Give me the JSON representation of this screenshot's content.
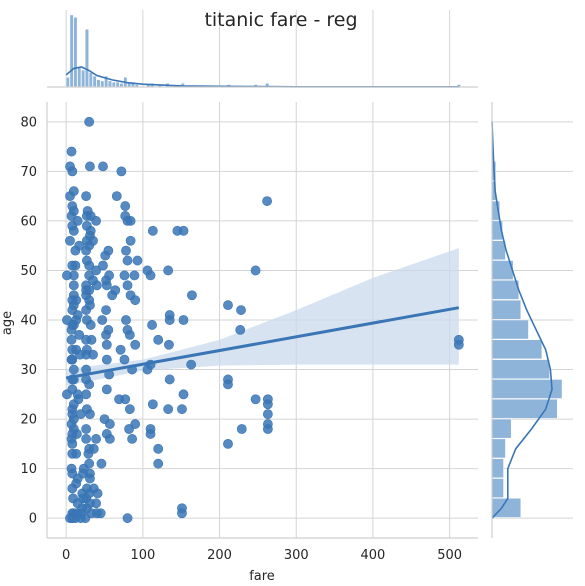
{
  "chart_data": {
    "type": "scatter",
    "title": "titanic fare - reg",
    "xlabel": "fare",
    "ylabel": "age",
    "xlim": [
      -25,
      537
    ],
    "ylim": [
      -4,
      84
    ],
    "xticks": [
      0,
      100,
      200,
      300,
      400,
      500
    ],
    "yticks": [
      0,
      10,
      20,
      30,
      40,
      50,
      60,
      70,
      80
    ],
    "grid": true,
    "legend": "none",
    "colors": {
      "points": "#3a76b5",
      "line": "#3a76b5",
      "band": "#c9d9ec",
      "hist": "#8fb4da"
    },
    "regression": {
      "slope": 0.0277,
      "intercept": 28.3,
      "ci_upper": [
        [
          0,
          30.1
        ],
        [
          100,
          32.0
        ],
        [
          200,
          36.0
        ],
        [
          300,
          42.0
        ],
        [
          400,
          48.5
        ],
        [
          512,
          54.5
        ]
      ],
      "ci_lower": [
        [
          0,
          26.7
        ],
        [
          100,
          29.8
        ],
        [
          200,
          30.8
        ],
        [
          300,
          31.0
        ],
        [
          400,
          31.0
        ],
        [
          512,
          31.0
        ]
      ]
    },
    "points": [
      [
        30,
        80
      ],
      [
        7,
        74
      ],
      [
        5,
        71
      ],
      [
        8,
        70
      ],
      [
        31,
        71
      ],
      [
        48,
        71
      ],
      [
        72,
        70
      ],
      [
        10,
        66
      ],
      [
        5,
        65
      ],
      [
        26,
        65
      ],
      [
        66,
        65
      ],
      [
        262,
        64
      ],
      [
        8,
        63
      ],
      [
        28,
        62
      ],
      [
        77,
        63
      ],
      [
        10,
        62
      ],
      [
        7,
        61
      ],
      [
        27,
        61
      ],
      [
        32,
        61
      ],
      [
        77,
        61
      ],
      [
        15,
        60
      ],
      [
        80,
        60
      ],
      [
        8,
        59
      ],
      [
        27,
        59
      ],
      [
        39,
        60
      ],
      [
        84,
        60
      ],
      [
        32,
        58
      ],
      [
        113,
        58
      ],
      [
        145,
        58
      ],
      [
        153,
        58
      ],
      [
        10,
        58
      ],
      [
        31,
        57
      ],
      [
        27,
        56
      ],
      [
        35,
        56
      ],
      [
        5,
        56
      ],
      [
        84,
        56
      ],
      [
        17,
        55
      ],
      [
        30,
        55
      ],
      [
        12,
        54
      ],
      [
        26,
        54
      ],
      [
        55,
        54
      ],
      [
        78,
        54
      ],
      [
        51,
        53
      ],
      [
        80,
        52
      ],
      [
        93,
        52
      ],
      [
        27,
        52
      ],
      [
        30,
        51
      ],
      [
        12,
        51
      ],
      [
        48,
        51
      ],
      [
        8,
        51
      ],
      [
        39,
        50
      ],
      [
        106,
        50
      ],
      [
        133,
        50
      ],
      [
        247,
        50
      ],
      [
        10,
        49
      ],
      [
        30,
        49
      ],
      [
        56,
        49
      ],
      [
        76,
        49
      ],
      [
        89,
        49
      ],
      [
        110,
        49
      ],
      [
        1,
        49
      ],
      [
        35,
        48
      ],
      [
        52,
        48
      ],
      [
        26,
        47
      ],
      [
        53,
        47
      ],
      [
        40,
        47
      ],
      [
        10,
        47
      ],
      [
        80,
        47
      ],
      [
        64,
        46
      ],
      [
        26,
        46
      ],
      [
        30,
        46
      ],
      [
        10,
        45
      ],
      [
        26,
        45
      ],
      [
        60,
        45
      ],
      [
        84,
        45
      ],
      [
        164,
        45
      ],
      [
        13,
        44
      ],
      [
        30,
        44
      ],
      [
        8,
        44
      ],
      [
        90,
        44
      ],
      [
        211,
        43
      ],
      [
        31,
        43
      ],
      [
        10,
        43
      ],
      [
        228,
        42
      ],
      [
        8,
        42
      ],
      [
        26,
        42
      ],
      [
        52,
        42
      ],
      [
        15,
        41
      ],
      [
        135,
        41
      ],
      [
        153,
        40
      ],
      [
        1,
        40
      ],
      [
        27,
        40
      ],
      [
        47,
        40
      ],
      [
        135,
        40
      ],
      [
        13,
        40
      ],
      [
        78,
        40
      ],
      [
        112,
        39
      ],
      [
        10,
        39
      ],
      [
        32,
        39
      ],
      [
        8,
        39
      ],
      [
        80,
        38
      ],
      [
        227,
        38
      ],
      [
        7,
        38
      ],
      [
        55,
        38
      ],
      [
        17,
        37
      ],
      [
        83,
        37
      ],
      [
        52,
        37
      ],
      [
        26,
        36
      ],
      [
        120,
        36
      ],
      [
        512,
        36
      ],
      [
        512,
        35
      ],
      [
        7,
        36
      ],
      [
        33,
        36
      ],
      [
        90,
        35
      ],
      [
        53,
        35
      ],
      [
        134,
        35
      ],
      [
        13,
        34
      ],
      [
        27,
        34
      ],
      [
        8,
        34
      ],
      [
        71,
        34
      ],
      [
        35,
        33
      ],
      [
        26,
        33
      ],
      [
        18,
        33
      ],
      [
        7,
        32
      ],
      [
        53,
        32
      ],
      [
        8,
        32
      ],
      [
        76,
        32
      ],
      [
        163,
        31
      ],
      [
        110,
        31
      ],
      [
        10,
        30
      ],
      [
        26,
        30
      ],
      [
        86,
        30
      ],
      [
        106,
        30
      ],
      [
        56,
        29
      ],
      [
        8,
        28
      ],
      [
        211,
        28
      ],
      [
        26,
        28
      ],
      [
        10,
        28
      ],
      [
        135,
        28
      ],
      [
        211,
        27
      ],
      [
        30,
        27
      ],
      [
        53,
        26
      ],
      [
        8,
        26
      ],
      [
        15,
        25
      ],
      [
        1,
        25
      ],
      [
        153,
        25
      ],
      [
        26,
        25
      ],
      [
        69,
        24
      ],
      [
        77,
        24
      ],
      [
        263,
        24
      ],
      [
        247,
        24
      ],
      [
        16,
        24
      ],
      [
        10,
        23
      ],
      [
        263,
        23
      ],
      [
        113,
        23
      ],
      [
        8,
        22
      ],
      [
        133,
        22
      ],
      [
        151,
        22
      ],
      [
        83,
        22
      ],
      [
        27,
        22
      ],
      [
        19,
        21
      ],
      [
        263,
        21
      ],
      [
        31,
        21
      ],
      [
        8,
        21
      ],
      [
        10,
        20
      ],
      [
        50,
        20
      ],
      [
        7,
        19
      ],
      [
        263,
        19
      ],
      [
        57,
        19
      ],
      [
        90,
        19
      ],
      [
        10,
        18
      ],
      [
        263,
        18
      ],
      [
        26,
        18
      ],
      [
        229,
        18
      ],
      [
        82,
        18
      ],
      [
        110,
        18
      ],
      [
        14,
        17
      ],
      [
        110,
        17
      ],
      [
        8,
        17
      ],
      [
        53,
        17
      ],
      [
        211,
        15
      ],
      [
        7,
        16
      ],
      [
        26,
        16
      ],
      [
        39,
        16
      ],
      [
        57,
        16
      ],
      [
        86,
        16
      ],
      [
        8,
        15
      ],
      [
        30,
        14
      ],
      [
        120,
        14
      ],
      [
        36,
        14
      ],
      [
        13,
        13
      ],
      [
        29,
        13
      ],
      [
        8,
        13
      ],
      [
        120,
        11
      ],
      [
        46,
        11
      ],
      [
        30,
        11
      ],
      [
        23,
        10
      ],
      [
        7,
        10
      ],
      [
        8,
        9
      ],
      [
        31,
        9
      ],
      [
        22,
        9
      ],
      [
        15,
        8
      ],
      [
        31,
        8
      ],
      [
        13,
        7
      ],
      [
        27,
        6
      ],
      [
        36,
        6
      ],
      [
        8,
        6
      ],
      [
        21,
        5
      ],
      [
        30,
        5
      ],
      [
        41,
        5
      ],
      [
        9,
        4
      ],
      [
        22,
        4
      ],
      [
        26,
        4
      ],
      [
        31,
        3
      ],
      [
        15,
        3
      ],
      [
        39,
        3
      ],
      [
        27,
        2
      ],
      [
        21,
        2
      ],
      [
        151,
        2
      ],
      [
        10,
        1
      ],
      [
        40,
        1
      ],
      [
        14,
        1
      ],
      [
        151,
        1
      ],
      [
        20,
        1
      ],
      [
        8,
        1
      ],
      [
        45,
        1
      ],
      [
        33,
        1
      ],
      [
        25,
        0
      ],
      [
        12,
        0
      ],
      [
        8,
        0
      ],
      [
        80,
        0
      ],
      [
        19,
        0
      ],
      [
        5,
        0
      ]
    ],
    "hist_x": {
      "bins": [
        [
          0,
          5,
          8
        ],
        [
          5,
          10,
          60
        ],
        [
          10,
          15,
          58
        ],
        [
          15,
          20,
          16
        ],
        [
          20,
          25,
          14
        ],
        [
          25,
          30,
          48
        ],
        [
          30,
          35,
          12
        ],
        [
          35,
          40,
          9
        ],
        [
          40,
          45,
          6
        ],
        [
          45,
          50,
          5
        ],
        [
          50,
          55,
          9
        ],
        [
          55,
          60,
          5
        ],
        [
          60,
          65,
          4
        ],
        [
          65,
          70,
          4
        ],
        [
          70,
          75,
          3
        ],
        [
          75,
          80,
          8
        ],
        [
          80,
          85,
          3
        ],
        [
          85,
          90,
          4
        ],
        [
          90,
          95,
          2
        ],
        [
          105,
          110,
          2
        ],
        [
          110,
          115,
          3
        ],
        [
          120,
          125,
          2
        ],
        [
          130,
          135,
          3
        ],
        [
          145,
          150,
          2
        ],
        [
          150,
          155,
          3
        ],
        [
          210,
          215,
          2
        ],
        [
          225,
          230,
          1
        ],
        [
          245,
          250,
          2
        ],
        [
          260,
          265,
          3
        ],
        [
          510,
          515,
          2
        ]
      ],
      "kde": [
        [
          0,
          0.017
        ],
        [
          10,
          0.026
        ],
        [
          20,
          0.028
        ],
        [
          30,
          0.023
        ],
        [
          40,
          0.016
        ],
        [
          60,
          0.01
        ],
        [
          80,
          0.006
        ],
        [
          100,
          0.004
        ],
        [
          150,
          0.0015
        ],
        [
          200,
          0.0009
        ],
        [
          250,
          0.0006
        ],
        [
          300,
          0.0003
        ],
        [
          400,
          0.0002
        ],
        [
          512,
          0.0002
        ]
      ]
    },
    "hist_y": {
      "bins": [
        [
          0,
          4,
          30
        ],
        [
          4,
          8,
          12
        ],
        [
          8,
          12,
          12
        ],
        [
          12,
          16,
          14
        ],
        [
          16,
          20,
          20
        ],
        [
          20,
          24,
          68
        ],
        [
          24,
          28,
          73
        ],
        [
          28,
          32,
          60
        ],
        [
          32,
          36,
          52
        ],
        [
          36,
          40,
          38
        ],
        [
          40,
          44,
          30
        ],
        [
          44,
          48,
          28
        ],
        [
          48,
          52,
          22
        ],
        [
          52,
          56,
          14
        ],
        [
          56,
          60,
          11
        ],
        [
          60,
          64,
          8
        ],
        [
          64,
          68,
          4
        ],
        [
          68,
          72,
          4
        ],
        [
          72,
          76,
          1
        ],
        [
          76,
          80,
          1
        ]
      ],
      "kde": [
        [
          0,
          0
        ],
        [
          2,
          0.006
        ],
        [
          4,
          0.01
        ],
        [
          6,
          0.01
        ],
        [
          10,
          0.01
        ],
        [
          14,
          0.015
        ],
        [
          18,
          0.025
        ],
        [
          22,
          0.034
        ],
        [
          26,
          0.038
        ],
        [
          30,
          0.037
        ],
        [
          34,
          0.034
        ],
        [
          38,
          0.028
        ],
        [
          42,
          0.022
        ],
        [
          46,
          0.017
        ],
        [
          50,
          0.013
        ],
        [
          54,
          0.009
        ],
        [
          58,
          0.006
        ],
        [
          62,
          0.004
        ],
        [
          66,
          0.002
        ],
        [
          72,
          0.001
        ],
        [
          80,
          0
        ]
      ]
    }
  }
}
